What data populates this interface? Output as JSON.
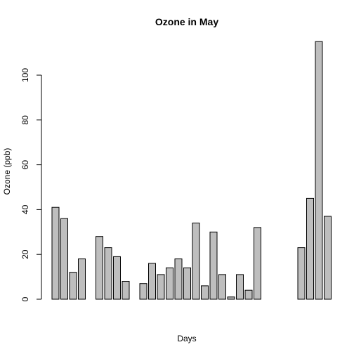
{
  "chart_data": {
    "type": "bar",
    "title": "Ozone in May",
    "xlabel": "Days",
    "ylabel": "Ozone (ppb)",
    "ylim": [
      0,
      115
    ],
    "yticks": [
      0,
      20,
      40,
      60,
      80,
      100
    ],
    "bar_color": "#bebebe",
    "values": [
      41,
      36,
      12,
      18,
      null,
      28,
      23,
      19,
      8,
      null,
      7,
      16,
      11,
      14,
      18,
      14,
      34,
      6,
      30,
      11,
      1,
      11,
      4,
      32,
      null,
      null,
      null,
      null,
      23,
      45,
      115,
      37
    ]
  }
}
